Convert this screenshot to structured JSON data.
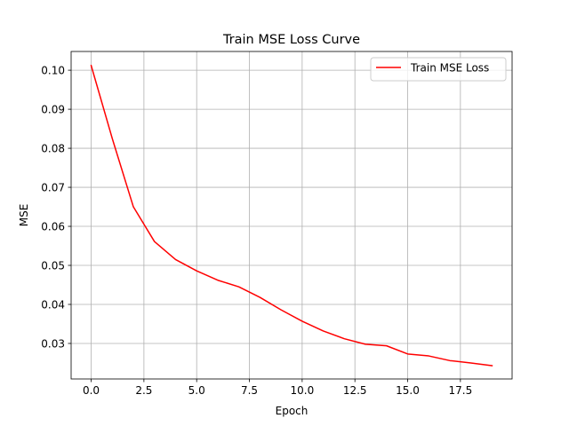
{
  "chart_data": {
    "type": "line",
    "title": "Train MSE Loss Curve",
    "xlabel": "Epoch",
    "ylabel": "MSE",
    "xlim": [
      -0.95,
      19.95
    ],
    "ylim": [
      0.0209,
      0.1048
    ],
    "x_ticks": [
      0.0,
      2.5,
      5.0,
      7.5,
      10.0,
      12.5,
      15.0,
      17.5
    ],
    "x_tick_labels": [
      "0.0",
      "2.5",
      "5.0",
      "7.5",
      "10.0",
      "12.5",
      "15.0",
      "17.5"
    ],
    "y_ticks": [
      0.03,
      0.04,
      0.05,
      0.06,
      0.07,
      0.08,
      0.09,
      0.1
    ],
    "y_tick_labels": [
      "0.03",
      "0.04",
      "0.05",
      "0.06",
      "0.07",
      "0.08",
      "0.09",
      "0.10"
    ],
    "grid": true,
    "legend_position": "top-right",
    "series": [
      {
        "name": "Train MSE Loss",
        "color": "#ff0000",
        "x": [
          0,
          1,
          2,
          3,
          4,
          5,
          6,
          7,
          8,
          9,
          10,
          11,
          12,
          13,
          14,
          15,
          16,
          17,
          18,
          19
        ],
        "y": [
          0.1012,
          0.0825,
          0.065,
          0.0561,
          0.0515,
          0.0486,
          0.0462,
          0.0445,
          0.0418,
          0.0386,
          0.0357,
          0.0332,
          0.0312,
          0.0298,
          0.0294,
          0.0273,
          0.0268,
          0.0256,
          0.025,
          0.0243
        ]
      }
    ]
  },
  "colors": {
    "background": "#ffffff",
    "axes": "#000000",
    "grid": "#b0b0b0",
    "legend_border": "#cccccc"
  }
}
